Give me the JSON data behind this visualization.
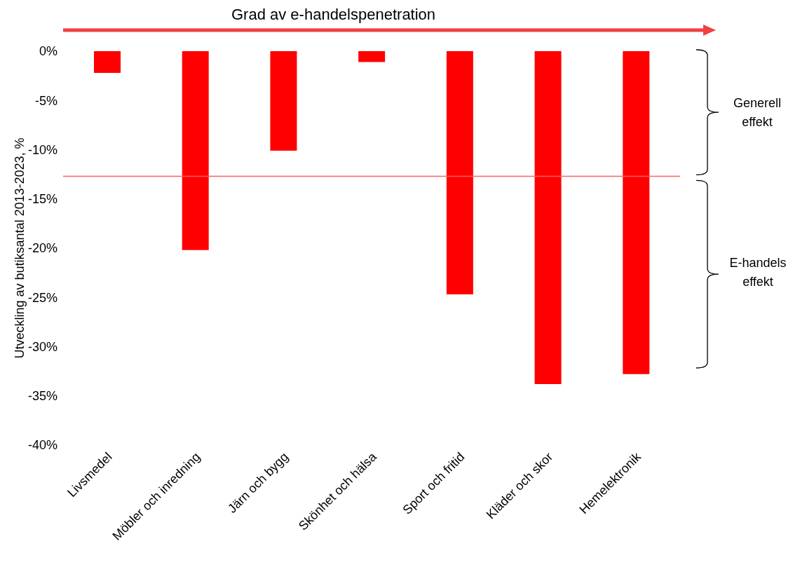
{
  "chart_data": {
    "type": "bar",
    "title": "Grad av e-handelspenetration",
    "ylabel": "Utveckling av butiksantal 2013-2023, %",
    "categories": [
      "Livsmedel",
      "Möbler och inredning",
      "Järn och bygg",
      "Skönhet och hälsa",
      "Sport och fritid",
      "Kläder och skor",
      "Hemelektronik"
    ],
    "values": [
      -2.2,
      -20.2,
      -10.1,
      -1.1,
      -24.7,
      -33.8,
      -32.8
    ],
    "color": "#ff0000",
    "ylim": [
      -40,
      0
    ],
    "yticks": [
      {
        "value": 0,
        "label": "0%"
      },
      {
        "value": -5,
        "label": "-5%"
      },
      {
        "value": -10,
        "label": "-10%"
      },
      {
        "value": -15,
        "label": "-15%"
      },
      {
        "value": -20,
        "label": "-20%"
      },
      {
        "value": -25,
        "label": "-25%"
      },
      {
        "value": -30,
        "label": "-30%"
      },
      {
        "value": -35,
        "label": "-35%"
      },
      {
        "value": -40,
        "label": "-40%"
      }
    ],
    "ref_lines": [
      {
        "axis": "y",
        "value": -12.7,
        "color": "#ff6060"
      }
    ],
    "annotations": [
      "Generell effekt",
      "E-handels effekt"
    ],
    "grid": false,
    "legend": false
  }
}
